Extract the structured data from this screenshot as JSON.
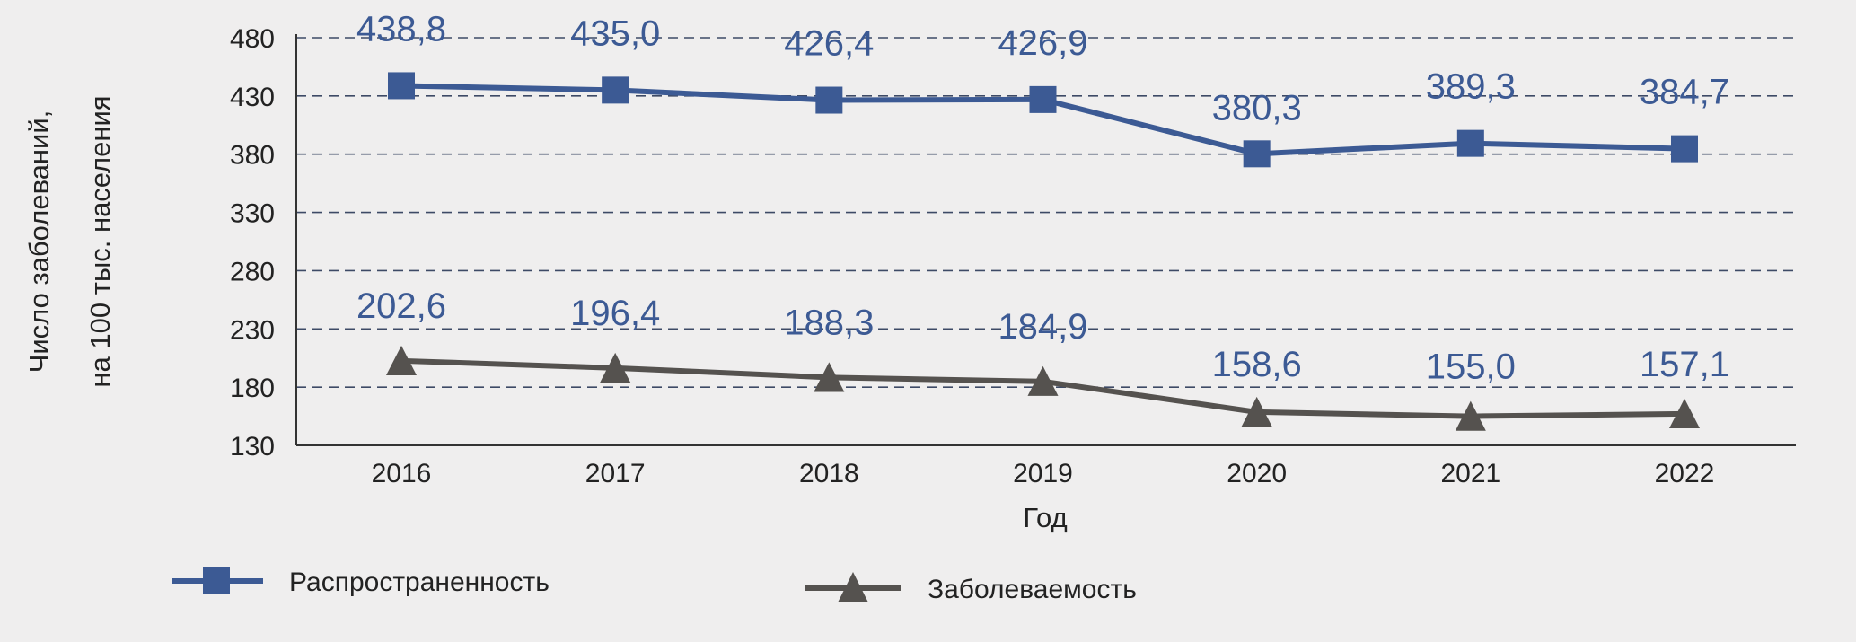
{
  "chart_data": {
    "type": "line",
    "categories": [
      "2016",
      "2017",
      "2018",
      "2019",
      "2020",
      "2021",
      "2022"
    ],
    "xlabel": "Год",
    "ylabel": [
      "Число заболеваний,",
      "на 100 тыс. населения"
    ],
    "ylim": [
      130,
      480
    ],
    "yticks": [
      130,
      180,
      230,
      280,
      330,
      380,
      430,
      480
    ],
    "grid": "horizontal dashed",
    "legend_position": "bottom",
    "series": [
      {
        "name": "Распространенность",
        "values": [
          438.8,
          435.0,
          426.4,
          426.9,
          380.3,
          389.3,
          384.7
        ],
        "labels": [
          "438,8",
          "435,0",
          "426,4",
          "426,9",
          "380,3",
          "389,3",
          "384,7"
        ],
        "color": "#3c5a94",
        "label_color": "#3c5a94",
        "marker": "square"
      },
      {
        "name": "Заболеваемость",
        "values": [
          202.6,
          196.4,
          188.3,
          184.9,
          158.6,
          155.0,
          157.1
        ],
        "labels": [
          "202,6",
          "196,4",
          "188,3",
          "184,9",
          "158,6",
          "155,0",
          "157,1"
        ],
        "color": "#55524f",
        "label_color": "#3c5a94",
        "marker": "triangle"
      }
    ]
  }
}
